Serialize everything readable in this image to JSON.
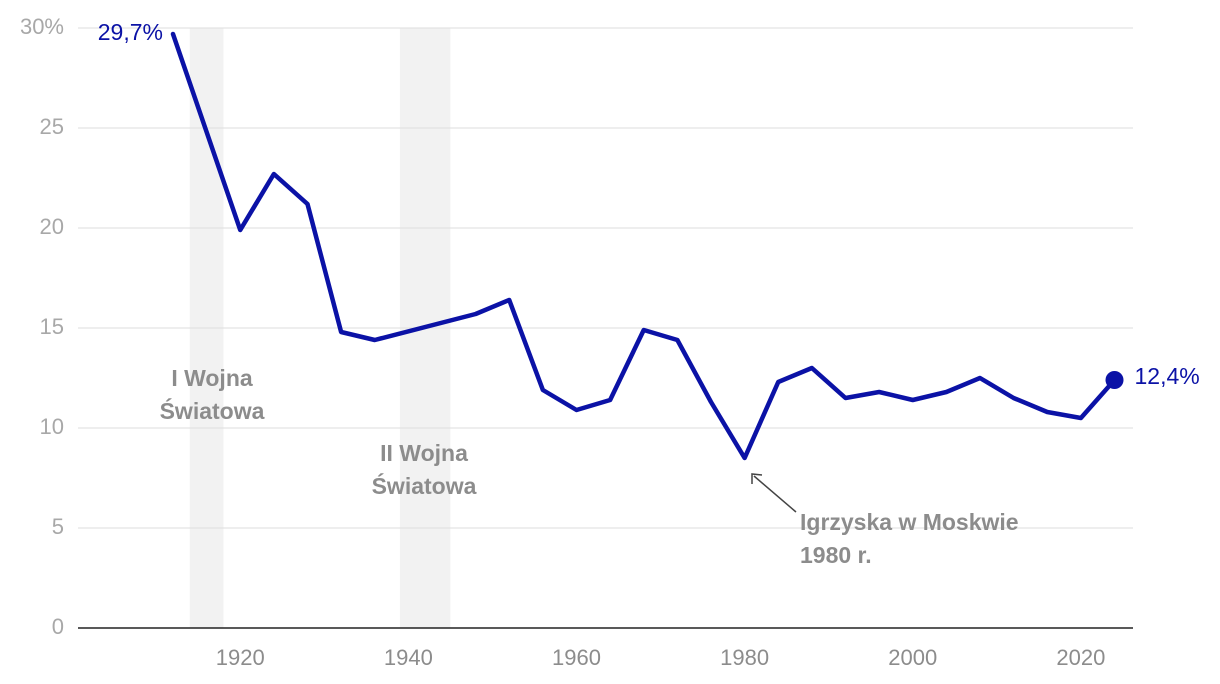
{
  "chart_data": {
    "type": "line",
    "x": [
      1912,
      1920,
      1924,
      1928,
      1932,
      1936,
      1948,
      1952,
      1956,
      1960,
      1964,
      1968,
      1972,
      1976,
      1980,
      1984,
      1988,
      1992,
      1996,
      2000,
      2004,
      2008,
      2012,
      2016,
      2020,
      2024
    ],
    "values": [
      29.7,
      19.9,
      22.7,
      21.2,
      14.8,
      14.4,
      15.7,
      16.4,
      11.9,
      10.9,
      11.4,
      14.9,
      14.4,
      11.3,
      8.5,
      12.3,
      13.0,
      11.5,
      11.8,
      11.4,
      11.8,
      12.5,
      11.5,
      10.8,
      10.5,
      12.4
    ],
    "value_labels": [
      "29,7%",
      null,
      null,
      null,
      null,
      null,
      null,
      null,
      null,
      null,
      null,
      null,
      null,
      null,
      null,
      null,
      null,
      null,
      null,
      null,
      null,
      null,
      null,
      null,
      null,
      "12,4%"
    ],
    "color": "#0b12a6",
    "xlim": [
      1900.7,
      2026.2
    ],
    "xticks": [
      1920,
      1940,
      1960,
      1980,
      2000,
      2020
    ],
    "ylim": [
      0,
      30
    ],
    "yticks": [
      0,
      5,
      10,
      15,
      20,
      25,
      {
        "value": 30,
        "label": "30%"
      }
    ],
    "grid": true,
    "spans": [
      {
        "start": 1914,
        "end": 1918,
        "label": [
          "I Wojna",
          "Światowa"
        ]
      },
      {
        "start": 1939,
        "end": 1945,
        "label": [
          "II Wojna",
          "Światowa"
        ]
      }
    ],
    "annotation": [
      "Igrzyska w Moskwie",
      "1980 r."
    ]
  }
}
